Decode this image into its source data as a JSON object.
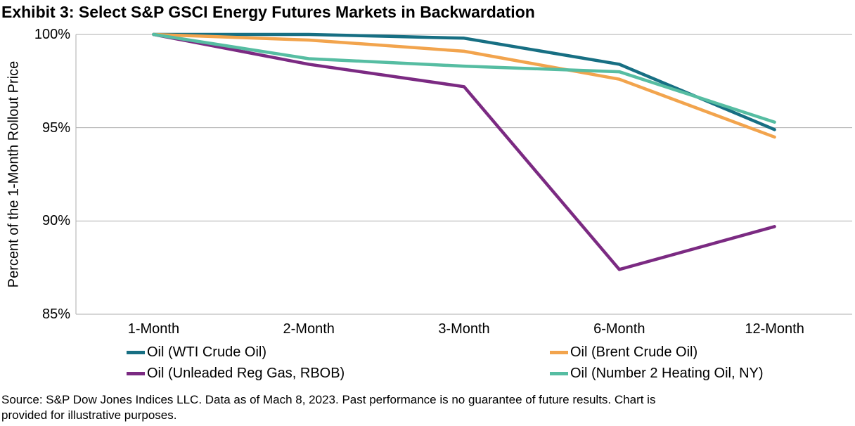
{
  "title": "Exhibit 3: Select S&P GSCI Energy Futures Markets in Backwardation",
  "source": {
    "lines": [
      "Source: S&P Dow Jones Indices LLC. Data as of Mach 8, 2023. Past performance is no guarantee of future results. Chart is",
      "provided for illustrative purposes."
    ]
  },
  "chart_data": {
    "type": "line",
    "title": "Exhibit 3: Select S&P GSCI Energy Futures Markets in Backwardation",
    "categories": [
      "1-Month",
      "2-Month",
      "3-Month",
      "6-Month",
      "12-Month"
    ],
    "series": [
      {
        "name": "Oil (WTI Crude Oil)",
        "color": "#176F83",
        "values": [
          100.0,
          100.0,
          99.8,
          98.4,
          94.9
        ]
      },
      {
        "name": "Oil (Brent Crude Oil)",
        "color": "#F2A44D",
        "values": [
          100.0,
          99.7,
          99.1,
          97.6,
          94.5
        ]
      },
      {
        "name": "Oil (Unleaded Reg Gas, RBOB)",
        "color": "#7B2A82",
        "values": [
          100.0,
          98.4,
          97.2,
          87.4,
          89.7
        ]
      },
      {
        "name": "Oil (Number 2 Heating Oil, NY)",
        "color": "#56BDA2",
        "values": [
          100.0,
          98.7,
          98.3,
          98.0,
          95.3
        ]
      }
    ],
    "xlabel": "",
    "ylabel": "Percent of the 1-Month Rollout Price",
    "ylim": [
      85,
      100
    ],
    "yticks": [
      {
        "label": "100%",
        "value": 100
      },
      {
        "label": "95%",
        "value": 95
      },
      {
        "label": "90%",
        "value": 90
      },
      {
        "label": "85%",
        "value": 85
      }
    ],
    "grid": true,
    "legend_position": "bottom-two-columns",
    "gridline_color": "#ADADAD",
    "line_width": 4.5
  }
}
